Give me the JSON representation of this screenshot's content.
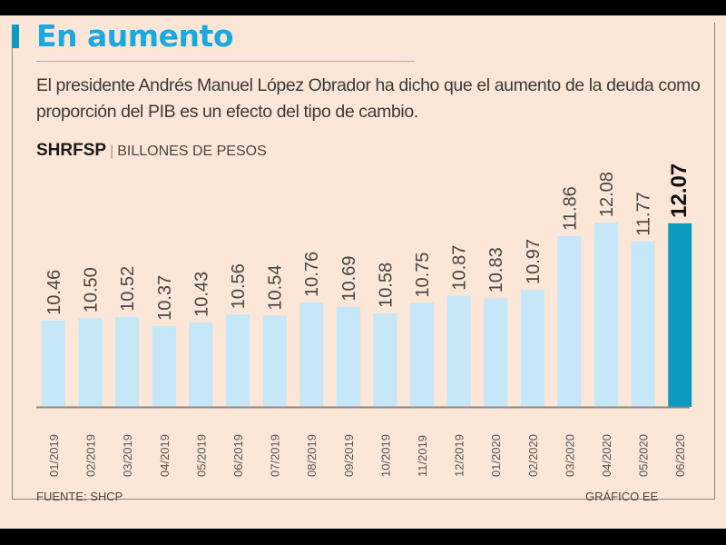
{
  "title": "En aumento",
  "subtitle": "El presidente Andrés Manuel López Obrador ha dicho que el aumento de la deuda como proporción del PIB es un efecto del tipo de cambio.",
  "series_name": "SHRFSP",
  "unit_label": "BILLONES DE PESOS",
  "source": "FUENTE: SHCP",
  "credit": "GRÁFICO EE",
  "colors": {
    "background": "#fbe6d8",
    "title": "#1aa9e0",
    "bar": "#c5e7f7",
    "bar_highlight": "#0b9bc0",
    "text": "#3c3a38"
  },
  "chart_data": {
    "type": "bar",
    "title": "SHRFSP",
    "ylabel": "Billones de pesos",
    "xlabel": "",
    "categories": [
      "01/2019",
      "02/2019",
      "03/2019",
      "04/2019",
      "05/2019",
      "06/2019",
      "07/2019",
      "08/2019",
      "09/2019",
      "10/2019",
      "11/2019",
      "12/2019",
      "01/2020",
      "02/2020",
      "03/2020",
      "04/2020",
      "05/2020",
      "06/2020"
    ],
    "values": [
      10.46,
      10.5,
      10.52,
      10.37,
      10.43,
      10.56,
      10.54,
      10.76,
      10.69,
      10.58,
      10.75,
      10.87,
      10.83,
      10.97,
      11.86,
      12.08,
      11.77,
      12.07
    ],
    "value_labels": [
      "10.46",
      "10.50",
      "10.52",
      "10.37",
      "10.43",
      "10.56",
      "10.54",
      "10.76",
      "10.69",
      "10.58",
      "10.75",
      "10.87",
      "10.83",
      "10.97",
      "11.86",
      "12.08",
      "11.77",
      "12.07"
    ],
    "highlight_index": 17,
    "ylim": [
      9.03,
      12.2
    ],
    "grid": false,
    "legend": "none"
  }
}
